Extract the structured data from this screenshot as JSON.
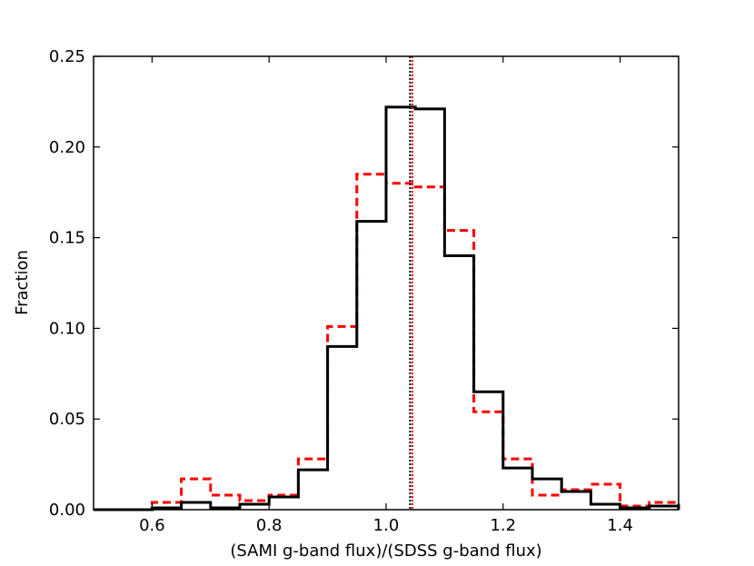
{
  "chart_data": {
    "type": "histogram",
    "xlabel": "(SAMI g-band flux)/(SDSS g-band flux)",
    "ylabel": "Fraction",
    "xlim": [
      0.5,
      1.5
    ],
    "ylim": [
      0.0,
      0.25
    ],
    "x_ticks": [
      0.6,
      0.8,
      1.0,
      1.2,
      1.4
    ],
    "x_tick_labels": [
      "0.6",
      "0.8",
      "1.0",
      "1.2",
      "1.4"
    ],
    "y_ticks": [
      0.0,
      0.05,
      0.1,
      0.15,
      0.2,
      0.25
    ],
    "y_tick_labels": [
      "0.00",
      "0.05",
      "0.10",
      "0.15",
      "0.20",
      "0.25"
    ],
    "bin_edges": [
      0.5,
      0.55,
      0.6,
      0.65,
      0.7,
      0.75,
      0.8,
      0.85,
      0.9,
      0.95,
      1.0,
      1.05,
      1.1,
      1.15,
      1.2,
      1.25,
      1.3,
      1.35,
      1.4,
      1.45,
      1.5
    ],
    "series": [
      {
        "style": "solid",
        "color": "#000000",
        "values": [
          0.0,
          0.0,
          0.001,
          0.004,
          0.001,
          0.003,
          0.007,
          0.022,
          0.09,
          0.159,
          0.222,
          0.221,
          0.14,
          0.065,
          0.023,
          0.017,
          0.01,
          0.003,
          0.001,
          0.002
        ]
      },
      {
        "style": "dashed",
        "color": "#ff0000",
        "values": [
          0.0,
          0.0,
          0.004,
          0.017,
          0.008,
          0.005,
          0.008,
          0.028,
          0.101,
          0.185,
          0.18,
          0.178,
          0.154,
          0.054,
          0.028,
          0.008,
          0.011,
          0.014,
          0.002,
          0.004
        ]
      }
    ],
    "vlines": [
      {
        "x": 1.041,
        "color": "#000000",
        "style": "dotted"
      },
      {
        "x": 1.045,
        "color": "#ff0000",
        "style": "dotted"
      }
    ],
    "grid": false,
    "legend": "none"
  }
}
